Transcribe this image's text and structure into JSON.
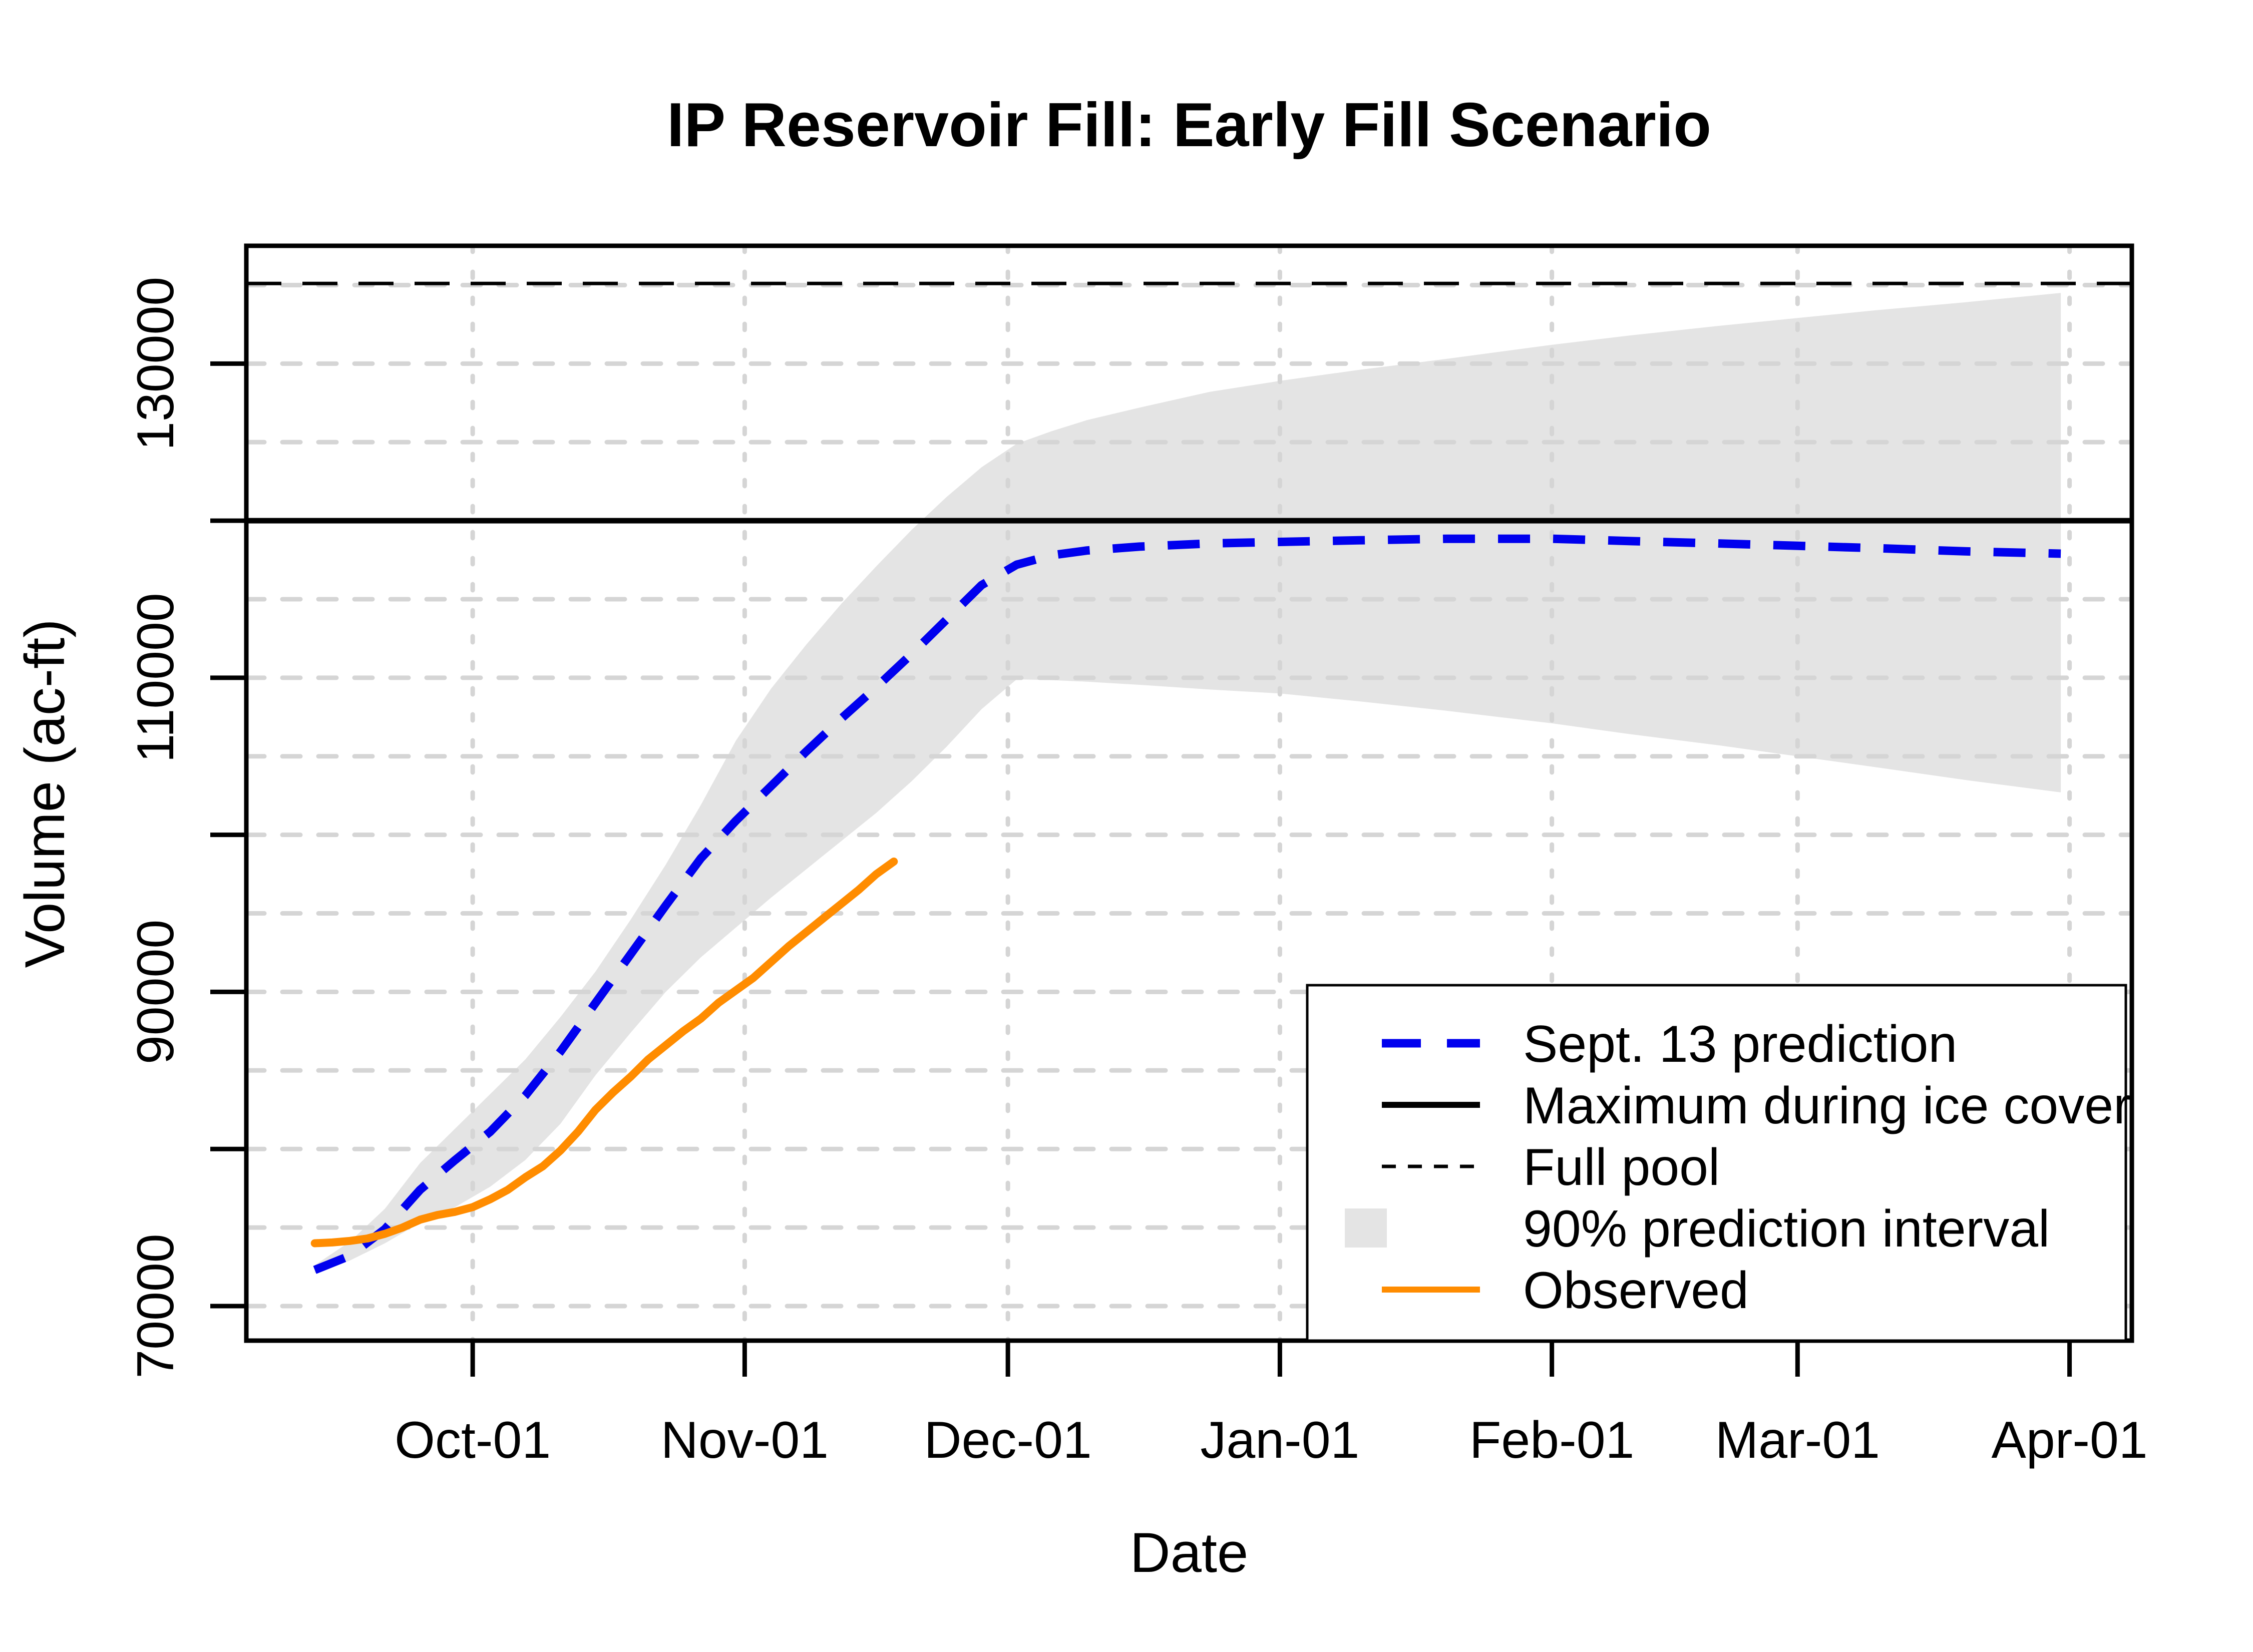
{
  "chart_data": {
    "type": "line",
    "title": "IP Reservoir Fill: Early Fill Scenario",
    "xlabel": "Date",
    "ylabel": "Volume (ac-ft)",
    "x_unit": "dates Sep 13 through Mar 31, MM-DD",
    "ylim": [
      67800,
      137500
    ],
    "grid": true,
    "x_ticks": [
      {
        "label": "Oct-01",
        "date": "10-01"
      },
      {
        "label": "Nov-01",
        "date": "11-01"
      },
      {
        "label": "Dec-01",
        "date": "12-01"
      },
      {
        "label": "Jan-01",
        "date": "01-01"
      },
      {
        "label": "Feb-01",
        "date": "02-01"
      },
      {
        "label": "Mar-01",
        "date": "03-01"
      },
      {
        "label": "Apr-01",
        "date": "04-01"
      }
    ],
    "y_ticks": [
      {
        "value": 70000,
        "label": "70000"
      },
      {
        "value": 80000,
        "label": ""
      },
      {
        "value": 90000,
        "label": "90000"
      },
      {
        "value": 100000,
        "label": ""
      },
      {
        "value": 110000,
        "label": "110000"
      },
      {
        "value": 120000,
        "label": ""
      },
      {
        "value": 130000,
        "label": "130000"
      }
    ],
    "y_gridlines": [
      70000,
      75000,
      80000,
      85000,
      90000,
      95000,
      100000,
      105000,
      110000,
      115000,
      120000,
      125000,
      130000,
      135000
    ],
    "reference_lines": {
      "max_during_ice_cover": 120000,
      "full_pool": 135100
    },
    "colors": {
      "prediction": "#0000EE",
      "observed": "#FF8C00",
      "interval": "#E4E4E4",
      "reference": "#000000",
      "grid": "#D5D5D5"
    },
    "series": {
      "prediction": {
        "name": "Sept. 13 prediction",
        "points": [
          [
            "09-13",
            72300
          ],
          [
            "09-17",
            73200
          ],
          [
            "09-21",
            74900
          ],
          [
            "09-25",
            77400
          ],
          [
            "09-29",
            79300
          ],
          [
            "10-03",
            81100
          ],
          [
            "10-07",
            83400
          ],
          [
            "10-11",
            86200
          ],
          [
            "10-15",
            89300
          ],
          [
            "10-19",
            92400
          ],
          [
            "10-23",
            95500
          ],
          [
            "10-27",
            98500
          ],
          [
            "10-31",
            100900
          ],
          [
            "11-04",
            103100
          ],
          [
            "11-08",
            105300
          ],
          [
            "11-12",
            107400
          ],
          [
            "11-16",
            109400
          ],
          [
            "11-20",
            111500
          ],
          [
            "11-24",
            113700
          ],
          [
            "11-28",
            115900
          ],
          [
            "12-02",
            117200
          ],
          [
            "12-06",
            117800
          ],
          [
            "12-10",
            118100
          ],
          [
            "12-16",
            118350
          ],
          [
            "12-24",
            118550
          ],
          [
            "01-01",
            118650
          ],
          [
            "01-10",
            118750
          ],
          [
            "01-20",
            118850
          ],
          [
            "02-01",
            118850
          ],
          [
            "02-10",
            118700
          ],
          [
            "02-20",
            118550
          ],
          [
            "03-01",
            118400
          ],
          [
            "03-10",
            118250
          ],
          [
            "03-20",
            118050
          ],
          [
            "03-31",
            117900
          ]
        ]
      },
      "interval": {
        "name": "90% prediction interval",
        "upper": [
          [
            "09-13",
            72600
          ],
          [
            "09-17",
            74100
          ],
          [
            "09-21",
            76200
          ],
          [
            "09-25",
            79100
          ],
          [
            "09-29",
            81300
          ],
          [
            "10-03",
            83500
          ],
          [
            "10-07",
            85700
          ],
          [
            "10-11",
            88400
          ],
          [
            "10-15",
            91300
          ],
          [
            "10-19",
            94600
          ],
          [
            "10-23",
            98100
          ],
          [
            "10-27",
            101900
          ],
          [
            "10-31",
            106000
          ],
          [
            "11-04",
            109300
          ],
          [
            "11-08",
            112100
          ],
          [
            "11-12",
            114700
          ],
          [
            "11-16",
            117100
          ],
          [
            "11-20",
            119400
          ],
          [
            "11-24",
            121500
          ],
          [
            "11-28",
            123400
          ],
          [
            "12-02",
            124900
          ],
          [
            "12-06",
            125700
          ],
          [
            "12-10",
            126400
          ],
          [
            "12-16",
            127200
          ],
          [
            "12-24",
            128200
          ],
          [
            "01-01",
            128900
          ],
          [
            "01-10",
            129600
          ],
          [
            "01-20",
            130300
          ],
          [
            "02-01",
            131200
          ],
          [
            "02-10",
            131800
          ],
          [
            "02-20",
            132400
          ],
          [
            "03-01",
            132900
          ],
          [
            "03-10",
            133400
          ],
          [
            "03-20",
            133900
          ],
          [
            "03-31",
            134500
          ]
        ],
        "lower": [
          [
            "09-13",
            72100
          ],
          [
            "09-17",
            72900
          ],
          [
            "09-21",
            74000
          ],
          [
            "09-25",
            75300
          ],
          [
            "09-29",
            76300
          ],
          [
            "10-03",
            77600
          ],
          [
            "10-07",
            79300
          ],
          [
            "10-11",
            81600
          ],
          [
            "10-15",
            84700
          ],
          [
            "10-19",
            87400
          ],
          [
            "10-23",
            90000
          ],
          [
            "10-27",
            92200
          ],
          [
            "10-31",
            94100
          ],
          [
            "11-04",
            96000
          ],
          [
            "11-08",
            97800
          ],
          [
            "11-12",
            99600
          ],
          [
            "11-16",
            101400
          ],
          [
            "11-20",
            103400
          ],
          [
            "11-24",
            105600
          ],
          [
            "11-28",
            108000
          ],
          [
            "12-02",
            109900
          ],
          [
            "12-06",
            109850
          ],
          [
            "12-10",
            109750
          ],
          [
            "12-16",
            109550
          ],
          [
            "12-24",
            109250
          ],
          [
            "01-01",
            109000
          ],
          [
            "01-10",
            108500
          ],
          [
            "01-20",
            107900
          ],
          [
            "02-01",
            107100
          ],
          [
            "02-10",
            106400
          ],
          [
            "02-20",
            105700
          ],
          [
            "03-01",
            105000
          ],
          [
            "03-10",
            104300
          ],
          [
            "03-20",
            103500
          ],
          [
            "03-31",
            102700
          ]
        ]
      },
      "observed": {
        "name": "Observed",
        "points": [
          [
            "09-13",
            74000
          ],
          [
            "09-15",
            74050
          ],
          [
            "09-17",
            74150
          ],
          [
            "09-19",
            74300
          ],
          [
            "09-21",
            74600
          ],
          [
            "09-23",
            75000
          ],
          [
            "09-25",
            75500
          ],
          [
            "09-27",
            75800
          ],
          [
            "09-29",
            76000
          ],
          [
            "10-01",
            76300
          ],
          [
            "10-03",
            76800
          ],
          [
            "10-05",
            77400
          ],
          [
            "10-07",
            78200
          ],
          [
            "10-09",
            78900
          ],
          [
            "10-11",
            79900
          ],
          [
            "10-13",
            81100
          ],
          [
            "10-15",
            82500
          ],
          [
            "10-17",
            83600
          ],
          [
            "10-19",
            84600
          ],
          [
            "10-21",
            85700
          ],
          [
            "10-23",
            86600
          ],
          [
            "10-25",
            87500
          ],
          [
            "10-27",
            88300
          ],
          [
            "10-29",
            89300
          ],
          [
            "10-31",
            90100
          ],
          [
            "11-02",
            90900
          ],
          [
            "11-04",
            91900
          ],
          [
            "11-06",
            92900
          ],
          [
            "11-08",
            93800
          ],
          [
            "11-10",
            94700
          ],
          [
            "11-12",
            95600
          ],
          [
            "11-14",
            96500
          ],
          [
            "11-16",
            97500
          ],
          [
            "11-18",
            98300
          ]
        ]
      }
    },
    "legend": {
      "position": "bottom-right",
      "items": [
        {
          "label": "Sept. 13 prediction",
          "swatch": "dashed-line",
          "color": "#0000EE"
        },
        {
          "label": "Maximum during ice cover",
          "swatch": "solid-line",
          "color": "#000000"
        },
        {
          "label": "Full pool",
          "swatch": "thin-dashed-line",
          "color": "#000000"
        },
        {
          "label": "90% prediction interval",
          "swatch": "fill",
          "color": "#E4E4E4"
        },
        {
          "label": "Observed",
          "swatch": "solid-line",
          "color": "#FF8C00"
        }
      ]
    }
  }
}
